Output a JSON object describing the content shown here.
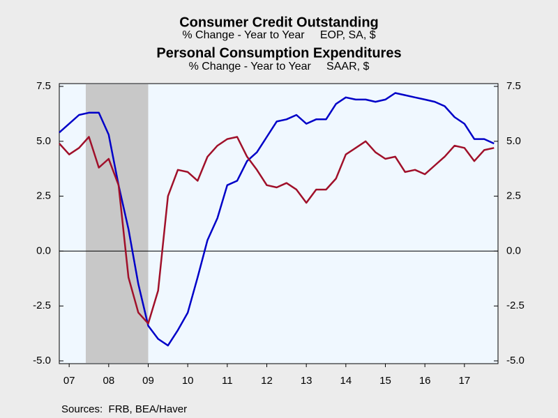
{
  "chart_data": {
    "type": "line",
    "title": "Consumer Credit Outstanding",
    "subtitle": "% Change - Year to Year     EOP, SA, $",
    "title2": "Personal Consumption Expenditures",
    "subtitle2": "% Change - Year to Year     SAAR, $",
    "source": "Sources:  FRB, BEA/Haver",
    "x": [
      2007.25,
      2007.5,
      2007.75,
      2008,
      2008.25,
      2008.5,
      2008.75,
      2009,
      2009.25,
      2009.5,
      2009.75,
      2010,
      2010.25,
      2010.5,
      2010.75,
      2011,
      2011.25,
      2011.5,
      2011.75,
      2012,
      2012.25,
      2012.5,
      2012.75,
      2013,
      2013.25,
      2013.5,
      2013.75,
      2014,
      2014.25,
      2014.5,
      2014.75,
      2015,
      2015.25,
      2015.5,
      2015.75,
      2016,
      2016.25,
      2016.5,
      2016.75,
      2017,
      2017.25,
      2017.5,
      2017.75,
      2018,
      2018.25
    ],
    "series": [
      {
        "name": "Consumer Credit Outstanding",
        "color": "#0000c8",
        "values": [
          5.4,
          5.8,
          6.2,
          6.3,
          6.3,
          5.3,
          3.0,
          1.0,
          -1.5,
          -3.4,
          -4.0,
          -4.3,
          -3.6,
          -2.8,
          -1.2,
          0.5,
          1.5,
          3.0,
          3.2,
          4.1,
          4.5,
          5.2,
          5.9,
          6.0,
          6.2,
          5.8,
          6.0,
          6.0,
          6.7,
          7.0,
          6.9,
          6.9,
          6.8,
          6.9,
          7.2,
          7.1,
          7.0,
          6.9,
          6.8,
          6.6,
          6.1,
          5.8,
          5.1,
          5.1,
          4.9
        ]
      },
      {
        "name": "Personal Consumption Expenditures",
        "color": "#a0102a",
        "axis": "y2",
        "values": [
          4.9,
          4.4,
          4.7,
          5.2,
          3.8,
          4.2,
          3.0,
          -1.2,
          -2.8,
          -3.3,
          -1.8,
          2.5,
          3.7,
          3.6,
          3.2,
          4.3,
          4.8,
          5.1,
          5.2,
          4.3,
          3.7,
          3.0,
          2.9,
          3.1,
          2.8,
          2.2,
          2.8,
          2.8,
          3.3,
          4.4,
          4.7,
          5.0,
          4.5,
          4.2,
          4.3,
          3.6,
          3.7,
          3.5,
          3.9,
          4.3,
          4.8,
          4.7,
          4.1,
          4.6,
          4.7
        ]
      }
    ],
    "xlim": [
      2007.25,
      2018.35
    ],
    "xticks": [
      {
        "value": 2007.5,
        "label": "07"
      },
      {
        "value": 2008.5,
        "label": "08"
      },
      {
        "value": 2009.5,
        "label": "09"
      },
      {
        "value": 2010.5,
        "label": "10"
      },
      {
        "value": 2011.5,
        "label": "11"
      },
      {
        "value": 2012.5,
        "label": "12"
      },
      {
        "value": 2013.5,
        "label": "13"
      },
      {
        "value": 2014.5,
        "label": "14"
      },
      {
        "value": 2015.5,
        "label": "15"
      },
      {
        "value": 2016.5,
        "label": "16"
      },
      {
        "value": 2017.5,
        "label": "17"
      }
    ],
    "ylim": [
      -5,
      7.5
    ],
    "yticks": [
      {
        "value": 7.5,
        "label": "7.5"
      },
      {
        "value": 5,
        "label": "5.0"
      },
      {
        "value": 2.5,
        "label": "2.5"
      },
      {
        "value": 0,
        "label": "0.0"
      },
      {
        "value": -2.5,
        "label": "-2.5"
      },
      {
        "value": -5,
        "label": "-5.0"
      }
    ],
    "y2lim": [
      -5,
      7.5
    ],
    "y2ticks": [
      {
        "value": 7.5,
        "label": "7.5"
      },
      {
        "value": 5,
        "label": "5.0"
      },
      {
        "value": 2.5,
        "label": "2.5"
      },
      {
        "value": 0,
        "label": "0.0"
      },
      {
        "value": -2.5,
        "label": "-2.5"
      },
      {
        "value": -5,
        "label": "-5.0"
      }
    ],
    "shade": [
      2007.92,
      2009.5
    ],
    "shade_color": "#c8c8c8"
  }
}
